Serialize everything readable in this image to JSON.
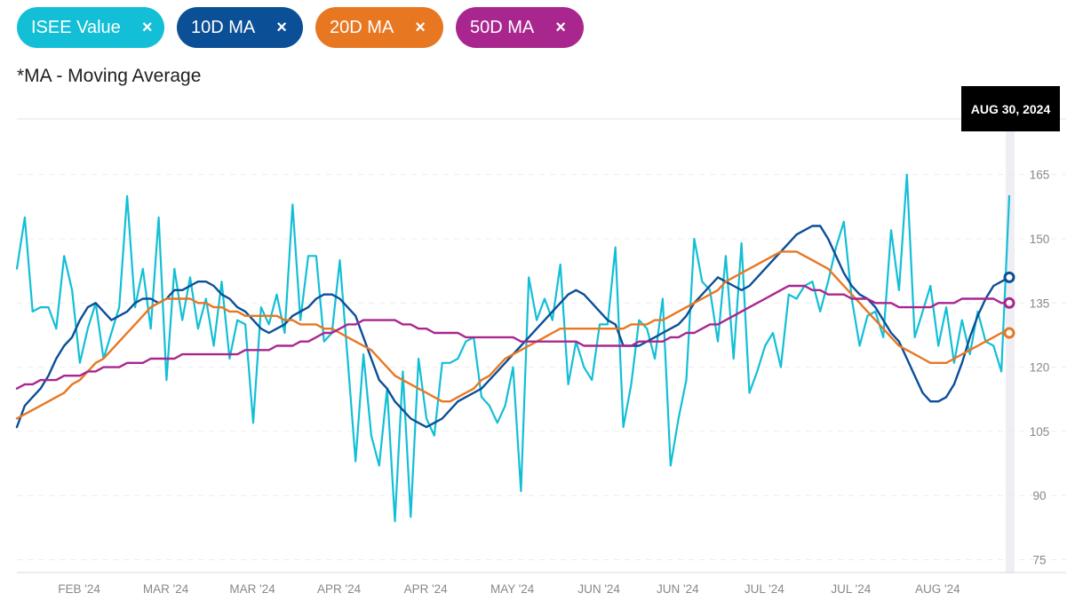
{
  "legend": {
    "chips": [
      {
        "label": "ISEE Value",
        "color": "#12bfd6",
        "close": "×"
      },
      {
        "label": "10D MA",
        "color": "#0b4f97",
        "close": "×"
      },
      {
        "label": "20D MA",
        "color": "#e87722",
        "close": "×"
      },
      {
        "label": "50D MA",
        "color": "#a9268f",
        "close": "×"
      }
    ]
  },
  "note": "*MA - Moving Average",
  "tooltip": {
    "date": "AUG 30, 2024"
  },
  "chart_data": {
    "type": "line",
    "ylim": [
      72,
      178
    ],
    "yticks": [
      75,
      90,
      105,
      120,
      135,
      150,
      165
    ],
    "xticks": [
      {
        "label": "FEB '24",
        "i": 7
      },
      {
        "label": "MAR '24",
        "i": 18
      },
      {
        "label": "MAR '24",
        "i": 29
      },
      {
        "label": "APR '24",
        "i": 40
      },
      {
        "label": "APR '24",
        "i": 51
      },
      {
        "label": "MAY '24",
        "i": 62
      },
      {
        "label": "JUN '24",
        "i": 73
      },
      {
        "label": "JUN '24",
        "i": 83
      },
      {
        "label": "JUL '24",
        "i": 94
      },
      {
        "label": "JUL '24",
        "i": 105
      },
      {
        "label": "AUG '24",
        "i": 116
      }
    ],
    "n_points": 127,
    "series": [
      {
        "name": "ISEE Value",
        "color": "#12bfd6",
        "width": 2.2,
        "values": [
          143,
          155,
          133,
          134,
          134,
          129,
          146,
          138,
          121,
          129,
          135,
          122,
          128,
          134,
          160,
          134,
          143,
          129,
          155,
          117,
          143,
          131,
          141,
          129,
          136,
          125,
          140,
          122,
          131,
          130,
          107,
          134,
          130,
          137,
          128,
          158,
          131,
          146,
          146,
          126,
          128,
          145,
          122,
          98,
          123,
          104,
          97,
          115,
          84,
          119,
          85,
          122,
          108,
          104,
          121,
          121,
          122,
          126,
          127,
          113,
          111,
          107,
          111,
          120,
          91,
          141,
          131,
          136,
          131,
          144,
          116,
          126,
          120,
          117,
          130,
          130,
          148,
          106,
          116,
          131,
          129,
          122,
          136,
          97,
          108,
          117,
          150,
          140,
          138,
          126,
          146,
          122,
          149,
          114,
          119,
          125,
          128,
          120,
          137,
          136,
          139,
          140,
          133,
          140,
          148,
          154,
          136,
          125,
          132,
          133,
          127,
          152,
          138,
          165,
          127,
          133,
          139,
          125,
          134,
          121,
          131,
          123,
          133,
          126,
          125,
          119,
          160
        ]
      },
      {
        "name": "10D MA",
        "color": "#0b4f97",
        "width": 2.4,
        "values": [
          106,
          111,
          113,
          115,
          118,
          122,
          125,
          127,
          131,
          134,
          135,
          133,
          131,
          132,
          133,
          135,
          136,
          136,
          135,
          136,
          138,
          138,
          139,
          140,
          140,
          139,
          137,
          136,
          134,
          133,
          131,
          129,
          128,
          129,
          130,
          132,
          133,
          134,
          136,
          137,
          137,
          136,
          134,
          132,
          127,
          122,
          117,
          115,
          112,
          110,
          108,
          107,
          106,
          107,
          108,
          110,
          112,
          113,
          114,
          115,
          117,
          119,
          121,
          123,
          125,
          127,
          129,
          131,
          133,
          135,
          137,
          138,
          137,
          135,
          133,
          131,
          130,
          125,
          125,
          125,
          126,
          127,
          128,
          129,
          130,
          132,
          135,
          137,
          139,
          141,
          140,
          139,
          138,
          139,
          141,
          143,
          145,
          147,
          149,
          151,
          152,
          153,
          153,
          150,
          146,
          142,
          139,
          137,
          136,
          134,
          131,
          128,
          126,
          122,
          118,
          114,
          112,
          112,
          113,
          116,
          121,
          127,
          132,
          136,
          139,
          140,
          141
        ]
      },
      {
        "name": "20D MA",
        "color": "#e87722",
        "width": 2.4,
        "values": [
          108,
          109,
          110,
          111,
          112,
          113,
          114,
          116,
          117,
          119,
          121,
          122,
          124,
          126,
          128,
          130,
          132,
          134,
          135,
          136,
          136,
          136,
          136,
          135,
          135,
          134,
          134,
          133,
          133,
          132,
          132,
          132,
          132,
          132,
          131,
          131,
          130,
          130,
          130,
          129,
          129,
          128,
          127,
          126,
          125,
          124,
          122,
          120,
          118,
          117,
          116,
          115,
          114,
          113,
          112,
          112,
          113,
          114,
          115,
          117,
          118,
          120,
          122,
          123,
          124,
          125,
          126,
          127,
          128,
          129,
          129,
          129,
          129,
          129,
          129,
          129,
          129,
          129,
          130,
          130,
          130,
          131,
          131,
          132,
          133,
          134,
          135,
          136,
          137,
          138,
          140,
          141,
          142,
          143,
          144,
          145,
          146,
          147,
          147,
          147,
          146,
          145,
          144,
          143,
          141,
          139,
          137,
          135,
          133,
          131,
          129,
          127,
          125,
          124,
          123,
          122,
          121,
          121,
          121,
          122,
          123,
          124,
          125,
          126,
          127,
          128,
          128
        ]
      },
      {
        "name": "50D MA",
        "color": "#a9268f",
        "width": 2.4,
        "values": [
          115,
          116,
          116,
          117,
          117,
          117,
          118,
          118,
          118,
          119,
          119,
          120,
          120,
          120,
          121,
          121,
          121,
          122,
          122,
          122,
          122,
          123,
          123,
          123,
          123,
          123,
          123,
          123,
          123,
          124,
          124,
          124,
          124,
          125,
          125,
          125,
          126,
          126,
          127,
          128,
          128,
          129,
          130,
          130,
          131,
          131,
          131,
          131,
          131,
          130,
          130,
          129,
          129,
          128,
          128,
          128,
          128,
          127,
          127,
          127,
          127,
          127,
          127,
          127,
          126,
          126,
          126,
          126,
          126,
          126,
          126,
          126,
          125,
          125,
          125,
          125,
          125,
          125,
          125,
          126,
          126,
          126,
          126,
          127,
          127,
          128,
          128,
          129,
          130,
          130,
          131,
          132,
          133,
          134,
          135,
          136,
          137,
          138,
          139,
          139,
          139,
          138,
          138,
          137,
          137,
          137,
          136,
          136,
          136,
          135,
          135,
          135,
          134,
          134,
          134,
          134,
          134,
          135,
          135,
          135,
          136,
          136,
          136,
          136,
          136,
          135,
          135
        ]
      }
    ]
  }
}
